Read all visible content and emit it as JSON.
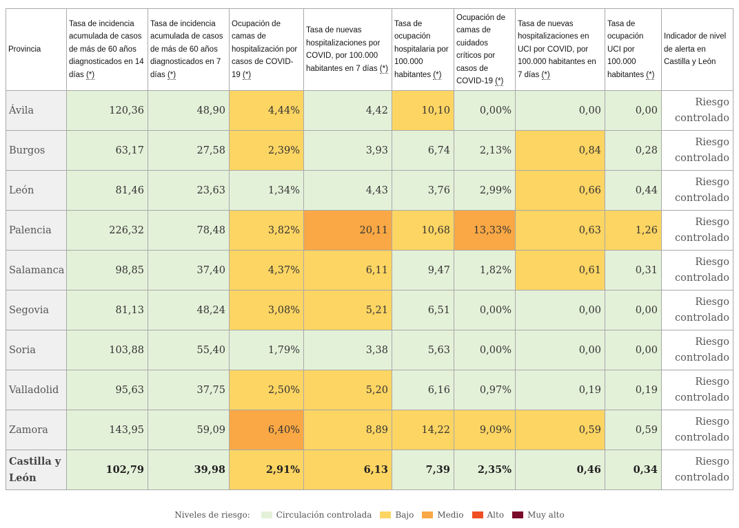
{
  "table": {
    "headers": [
      {
        "text": "Provincia",
        "ast": false
      },
      {
        "text": "Tasa de incidencia acumulada de casos de más de 60 años diagnosticados en 14 días",
        "ast": true
      },
      {
        "text": "Tasa de incidencia acumulada de casos de más de 60 años diagnosticados en 7 días",
        "ast": true
      },
      {
        "text": "Ocupación de camas de hospitalización por casos de COVID-19",
        "ast": true
      },
      {
        "text": "Tasa de nuevas hospitalizaciones por COVID, por 100.000 habitantes en 7 días",
        "ast": true
      },
      {
        "text": "Tasa de ocupación hospitalaria por 100.000 habitantes",
        "ast": true
      },
      {
        "text": "Ocupación de camas de cuidados críticos por casos de COVID-19",
        "ast": true
      },
      {
        "text": "Tasa de nuevas hospitalizaciones en UCI por COVID, por 100.000 habitantes en 7 días",
        "ast": true
      },
      {
        "text": "Tasa de ocupación UCI por 100.000 habitantes",
        "ast": true
      },
      {
        "text": "Indicador de nivel de alerta en Castilla y León",
        "ast": false
      }
    ],
    "asterisk": "(*)",
    "rows": [
      {
        "prov": "Ávila",
        "cells": [
          [
            "120,36",
            "g"
          ],
          [
            "48,90",
            "g"
          ],
          [
            "4,44%",
            "y"
          ],
          [
            "4,42",
            "g"
          ],
          [
            "10,10",
            "y"
          ],
          [
            "0,00%",
            "g"
          ],
          [
            "0,00",
            "g"
          ],
          [
            "0,00",
            "g"
          ]
        ],
        "alert": "Riesgo controlado"
      },
      {
        "prov": "Burgos",
        "cells": [
          [
            "63,17",
            "g"
          ],
          [
            "27,58",
            "g"
          ],
          [
            "2,39%",
            "y"
          ],
          [
            "3,93",
            "g"
          ],
          [
            "6,74",
            "g"
          ],
          [
            "2,13%",
            "g"
          ],
          [
            "0,84",
            "y"
          ],
          [
            "0,28",
            "g"
          ]
        ],
        "alert": "Riesgo controlado"
      },
      {
        "prov": "León",
        "cells": [
          [
            "81,46",
            "g"
          ],
          [
            "23,63",
            "g"
          ],
          [
            "1,34%",
            "g"
          ],
          [
            "4,43",
            "g"
          ],
          [
            "3,76",
            "g"
          ],
          [
            "2,99%",
            "g"
          ],
          [
            "0,66",
            "y"
          ],
          [
            "0,44",
            "g"
          ]
        ],
        "alert": "Riesgo controlado"
      },
      {
        "prov": "Palencia",
        "cells": [
          [
            "226,32",
            "g"
          ],
          [
            "78,48",
            "g"
          ],
          [
            "3,82%",
            "y"
          ],
          [
            "20,11",
            "o"
          ],
          [
            "10,68",
            "y"
          ],
          [
            "13,33%",
            "o"
          ],
          [
            "0,63",
            "y"
          ],
          [
            "1,26",
            "y"
          ]
        ],
        "alert": "Riesgo controlado"
      },
      {
        "prov": "Salamanca",
        "cells": [
          [
            "98,85",
            "g"
          ],
          [
            "37,40",
            "g"
          ],
          [
            "4,37%",
            "y"
          ],
          [
            "6,11",
            "y"
          ],
          [
            "9,47",
            "g"
          ],
          [
            "1,82%",
            "g"
          ],
          [
            "0,61",
            "y"
          ],
          [
            "0,31",
            "g"
          ]
        ],
        "alert": "Riesgo controlado"
      },
      {
        "prov": "Segovia",
        "cells": [
          [
            "81,13",
            "g"
          ],
          [
            "48,24",
            "g"
          ],
          [
            "3,08%",
            "y"
          ],
          [
            "5,21",
            "y"
          ],
          [
            "6,51",
            "g"
          ],
          [
            "0,00%",
            "g"
          ],
          [
            "0,00",
            "g"
          ],
          [
            "0,00",
            "g"
          ]
        ],
        "alert": "Riesgo controlado"
      },
      {
        "prov": "Soria",
        "cells": [
          [
            "103,88",
            "g"
          ],
          [
            "55,40",
            "g"
          ],
          [
            "1,79%",
            "g"
          ],
          [
            "3,38",
            "g"
          ],
          [
            "5,63",
            "g"
          ],
          [
            "0,00%",
            "g"
          ],
          [
            "0,00",
            "g"
          ],
          [
            "0,00",
            "g"
          ]
        ],
        "alert": "Riesgo controlado"
      },
      {
        "prov": "Valladolid",
        "cells": [
          [
            "95,63",
            "g"
          ],
          [
            "37,75",
            "g"
          ],
          [
            "2,50%",
            "y"
          ],
          [
            "5,20",
            "y"
          ],
          [
            "6,16",
            "g"
          ],
          [
            "0,97%",
            "g"
          ],
          [
            "0,19",
            "g"
          ],
          [
            "0,19",
            "g"
          ]
        ],
        "alert": "Riesgo controlado"
      },
      {
        "prov": "Zamora",
        "cells": [
          [
            "143,95",
            "g"
          ],
          [
            "59,09",
            "g"
          ],
          [
            "6,40%",
            "o"
          ],
          [
            "8,89",
            "y"
          ],
          [
            "14,22",
            "y"
          ],
          [
            "9,09%",
            "y"
          ],
          [
            "0,59",
            "y"
          ],
          [
            "0,59",
            "g"
          ]
        ],
        "alert": "Riesgo controlado"
      }
    ],
    "total": {
      "prov": "Castilla y León",
      "cells": [
        [
          "102,79",
          "g"
        ],
        [
          "39,98",
          "g"
        ],
        [
          "2,91%",
          "y"
        ],
        [
          "6,13",
          "y"
        ],
        [
          "7,39",
          "g"
        ],
        [
          "2,35%",
          "g"
        ],
        [
          "0,46",
          "g"
        ],
        [
          "0,34",
          "g"
        ]
      ],
      "alert": "Riesgo controlado"
    }
  },
  "legend": {
    "title": "Niveles de riesgo:",
    "items": [
      {
        "label": "Circulación controlada",
        "color": "#e4f1d9"
      },
      {
        "label": "Bajo",
        "color": "#fdd563"
      },
      {
        "label": "Medio",
        "color": "#f9a845"
      },
      {
        "label": "Alto",
        "color": "#f04e23"
      },
      {
        "label": "Muy alto",
        "color": "#7a0b2b"
      }
    ]
  }
}
